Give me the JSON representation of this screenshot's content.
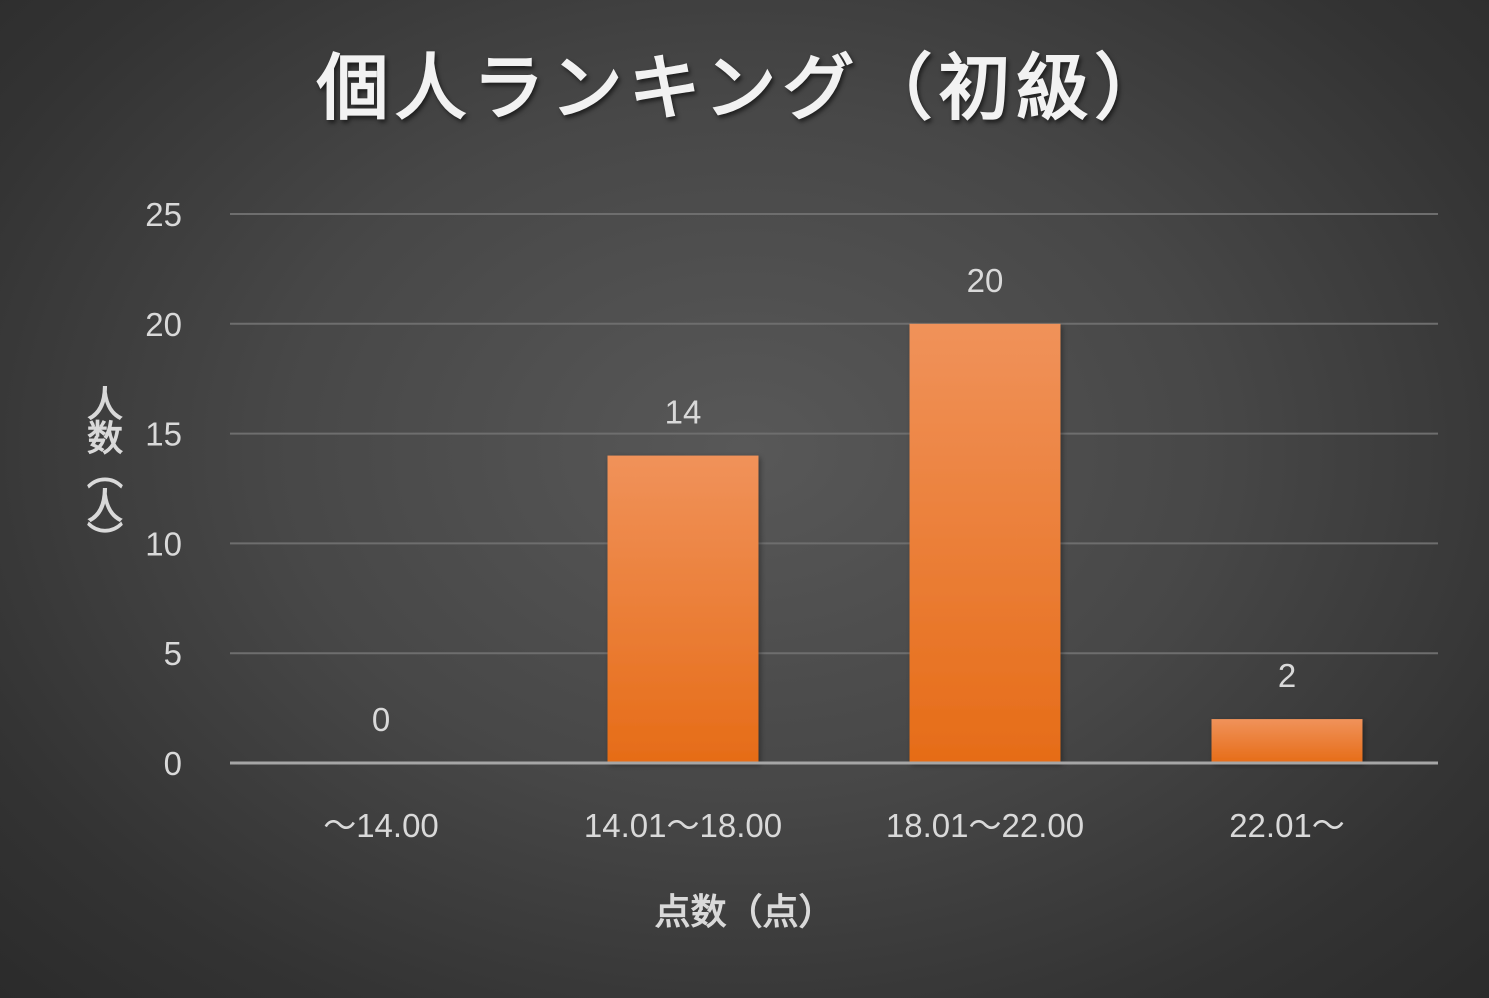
{
  "chart_data": {
    "type": "bar",
    "title": "個人ランキング（初級）",
    "xlabel": "点数（点）",
    "ylabel": "人数（人）",
    "categories": [
      "～14.00",
      "14.01～18.00",
      "18.01～22.00",
      "22.01～"
    ],
    "values": [
      0,
      14,
      20,
      2
    ],
    "ylim": [
      0,
      25
    ],
    "yticks": [
      0,
      5,
      10,
      15,
      20,
      25
    ],
    "grid": true,
    "legend": "none",
    "data_labels": true,
    "colors": {
      "bar_top": "#f0925a",
      "bar_bottom": "#e66c17",
      "gridline": "#6e6e6e",
      "axis_line": "#a6a6a6",
      "text": "#d9d9d9"
    }
  }
}
